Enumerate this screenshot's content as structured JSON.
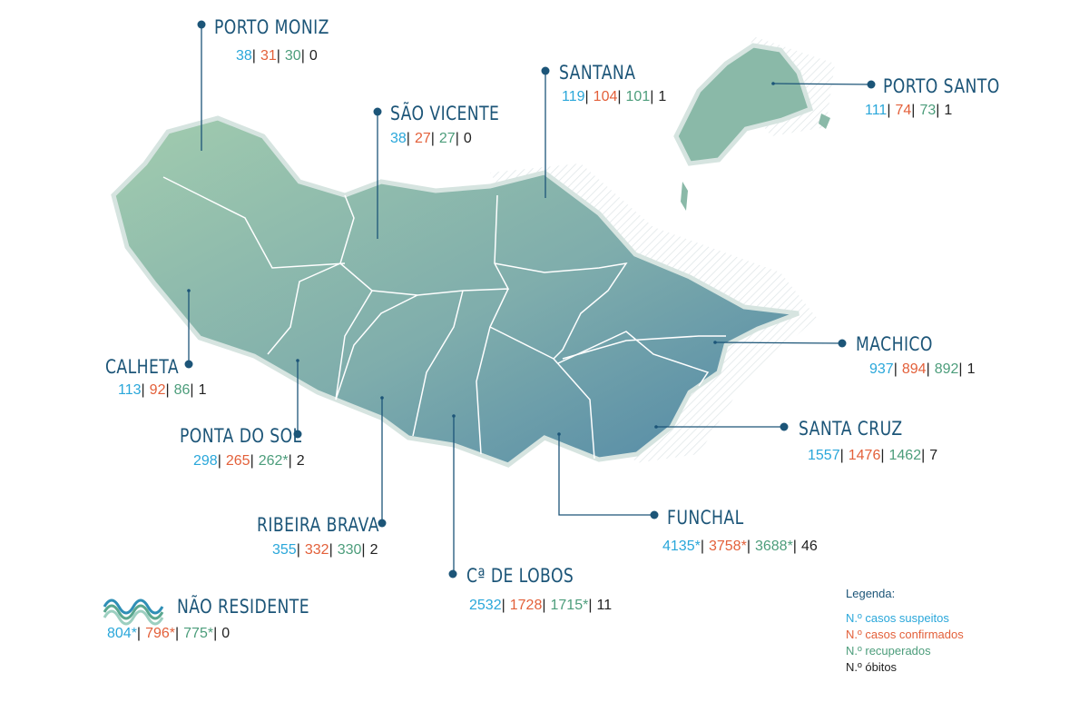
{
  "regions": [
    {
      "name": "PORTO MONIZ",
      "suspected": "38",
      "confirmed": "31",
      "recovered": "30",
      "deaths": "0"
    },
    {
      "name": "SÃO VICENTE",
      "suspected": "38",
      "confirmed": "27",
      "recovered": "27",
      "deaths": "0"
    },
    {
      "name": "SANTANA",
      "suspected": "119",
      "confirmed": "104",
      "recovered": "101",
      "deaths": "1"
    },
    {
      "name": "PORTO SANTO",
      "suspected": "111",
      "confirmed": "74",
      "recovered": "73",
      "deaths": "1"
    },
    {
      "name": "MACHICO",
      "suspected": "937",
      "confirmed": "894",
      "recovered": "892",
      "deaths": "1"
    },
    {
      "name": "SANTA CRUZ",
      "suspected": "1557",
      "confirmed": "1476",
      "recovered": "1462",
      "deaths": "7"
    },
    {
      "name": "FUNCHAL",
      "suspected": "4135*",
      "confirmed": "3758*",
      "recovered": "3688*",
      "deaths": "46"
    },
    {
      "name": "Cª DE LOBOS",
      "suspected": "2532",
      "confirmed": "1728",
      "recovered": "1715*",
      "deaths": "11"
    },
    {
      "name": "RIBEIRA BRAVA",
      "suspected": "355",
      "confirmed": "332",
      "recovered": "330",
      "deaths": "2"
    },
    {
      "name": "PONTA DO SOL",
      "suspected": "298",
      "confirmed": "265",
      "recovered": "262*",
      "deaths": "2"
    },
    {
      "name": "CALHETA",
      "suspected": "113",
      "confirmed": "92",
      "recovered": "86",
      "deaths": "1"
    },
    {
      "name": "NÃO RESIDENTE",
      "suspected": "804*",
      "confirmed": "796*",
      "recovered": "775*",
      "deaths": "0"
    }
  ],
  "separator": "|",
  "legend": {
    "title": "Legenda:",
    "items": [
      "N.º casos suspeitos",
      "N.º casos confirmados",
      "N.º recuperados",
      "N.º óbitos"
    ]
  }
}
